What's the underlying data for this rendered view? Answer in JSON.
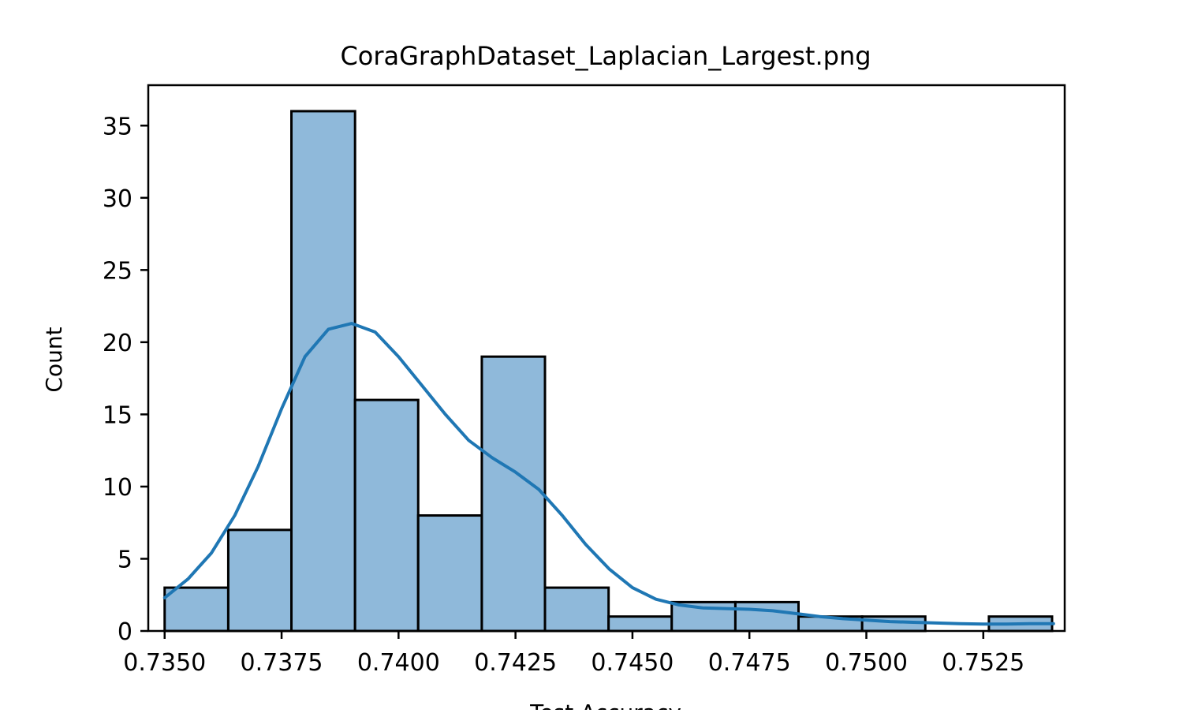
{
  "chart_data": {
    "type": "bar",
    "title": "CoraGraphDataset_Laplacian_Largest.png",
    "xlabel": "Test Accuracy",
    "ylabel": "Count",
    "xlim": [
      0.73465,
      0.75424
    ],
    "ylim": [
      0,
      37.8
    ],
    "x_ticks": [
      0.735,
      0.7375,
      0.74,
      0.7425,
      0.745,
      0.7475,
      0.75,
      0.7525
    ],
    "x_tick_labels": [
      "0.7350",
      "0.7375",
      "0.7400",
      "0.7425",
      "0.7450",
      "0.7475",
      "0.7500",
      "0.7525"
    ],
    "y_ticks": [
      0,
      5,
      10,
      15,
      20,
      25,
      30,
      35
    ],
    "y_tick_labels": [
      "0",
      "5",
      "10",
      "15",
      "20",
      "25",
      "30",
      "35"
    ],
    "bin_start": 0.735,
    "bin_width": 0.001355,
    "bins": [
      {
        "x0": 0.735,
        "x1": 0.73636,
        "count": 3
      },
      {
        "x0": 0.73636,
        "x1": 0.73771,
        "count": 7
      },
      {
        "x0": 0.73771,
        "x1": 0.73907,
        "count": 36
      },
      {
        "x0": 0.73907,
        "x1": 0.74042,
        "count": 16
      },
      {
        "x0": 0.74042,
        "x1": 0.74178,
        "count": 8
      },
      {
        "x0": 0.74178,
        "x1": 0.74313,
        "count": 19
      },
      {
        "x0": 0.74313,
        "x1": 0.74449,
        "count": 3
      },
      {
        "x0": 0.74449,
        "x1": 0.74584,
        "count": 1
      },
      {
        "x0": 0.74584,
        "x1": 0.7472,
        "count": 2
      },
      {
        "x0": 0.7472,
        "x1": 0.74855,
        "count": 2
      },
      {
        "x0": 0.74855,
        "x1": 0.74991,
        "count": 1
      },
      {
        "x0": 0.74991,
        "x1": 0.75126,
        "count": 1
      },
      {
        "x0": 0.75126,
        "x1": 0.75262,
        "count": 0
      },
      {
        "x0": 0.75262,
        "x1": 0.75397,
        "count": 1
      }
    ],
    "kde": {
      "x": [
        0.735,
        0.7355,
        0.736,
        0.7365,
        0.737,
        0.7375,
        0.738,
        0.7385,
        0.739,
        0.7395,
        0.74,
        0.7405,
        0.741,
        0.7415,
        0.742,
        0.7425,
        0.743,
        0.7435,
        0.744,
        0.7445,
        0.745,
        0.7455,
        0.746,
        0.7465,
        0.747,
        0.7475,
        0.748,
        0.7485,
        0.749,
        0.7495,
        0.75,
        0.7505,
        0.751,
        0.7515,
        0.752,
        0.7525,
        0.753,
        0.7535,
        0.754
      ],
      "y": [
        2.3,
        3.6,
        5.4,
        8.0,
        11.4,
        15.4,
        19.0,
        20.9,
        21.3,
        20.7,
        19.0,
        17.0,
        15.0,
        13.2,
        12.0,
        11.0,
        9.8,
        8.0,
        6.0,
        4.3,
        3.0,
        2.2,
        1.8,
        1.6,
        1.55,
        1.5,
        1.4,
        1.2,
        1.0,
        0.85,
        0.75,
        0.65,
        0.6,
        0.55,
        0.5,
        0.48,
        0.48,
        0.5,
        0.5
      ]
    },
    "bar_fill": "#8fb9da",
    "bar_edge": "#000000",
    "kde_color": "#1f77b4",
    "legend": "none",
    "grid": false
  }
}
